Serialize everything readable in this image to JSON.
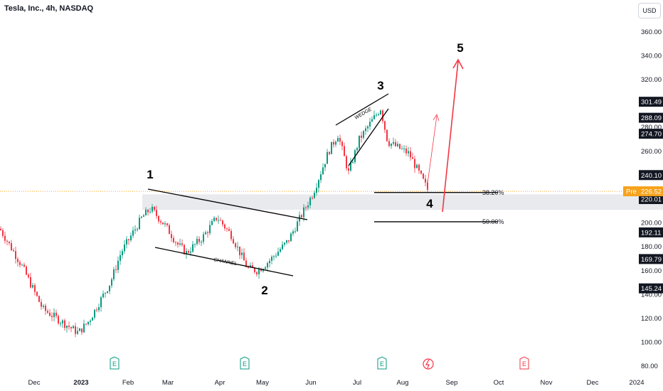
{
  "header": {
    "title": "Tesla, Inc., 4h, NASDAQ",
    "currency": "USD"
  },
  "colors": {
    "up": "#089981",
    "down": "#f23645",
    "price_line": "#f7a21b",
    "arrow": "#f23645",
    "fib_zone": "#e3e5ea",
    "label_bg": "#131722",
    "pre_bg": "#f7a21b"
  },
  "chart_data": {
    "type": "candlestick",
    "title": "Tesla, Inc., 4h, NASDAQ",
    "ylim": [
      73,
      373
    ],
    "y_ticks": [
      "80.00",
      "100.00",
      "120.00",
      "140.00",
      "160.00",
      "180.00",
      "200.00",
      "220.00",
      "240.00",
      "260.00",
      "280.00",
      "300.00",
      "320.00",
      "340.00",
      "360.00"
    ],
    "x_ticks": [
      "Dec",
      "2023",
      "Feb",
      "Mar",
      "Apr",
      "May",
      "Jun",
      "Jul",
      "Aug",
      "Sep",
      "Oct",
      "Nov",
      "Dec",
      "2024"
    ],
    "price_path": [
      {
        "t": "Dec",
        "price": 195
      },
      {
        "t": "Dec",
        "price": 180
      },
      {
        "t": "Dec",
        "price": 165
      },
      {
        "t": "2023",
        "price": 128
      },
      {
        "t": "2023",
        "price": 108
      },
      {
        "t": "2023",
        "price": 118
      },
      {
        "t": "Feb",
        "price": 150
      },
      {
        "t": "Feb",
        "price": 175
      },
      {
        "t": "Feb",
        "price": 205
      },
      {
        "t": "Feb",
        "price": 212
      },
      {
        "t": "Mar",
        "price": 198
      },
      {
        "t": "Mar",
        "price": 182
      },
      {
        "t": "Mar",
        "price": 175
      },
      {
        "t": "Apr",
        "price": 188
      },
      {
        "t": "Apr",
        "price": 205
      },
      {
        "t": "Apr",
        "price": 190
      },
      {
        "t": "May",
        "price": 162
      },
      {
        "t": "May",
        "price": 160
      },
      {
        "t": "May",
        "price": 168
      },
      {
        "t": "Jun",
        "price": 185
      },
      {
        "t": "Jun",
        "price": 225
      },
      {
        "t": "Jun",
        "price": 260
      },
      {
        "t": "Jun",
        "price": 274
      },
      {
        "t": "Jul",
        "price": 242
      },
      {
        "t": "Jul",
        "price": 270
      },
      {
        "t": "Jul",
        "price": 296
      },
      {
        "t": "Jul",
        "price": 268
      },
      {
        "t": "Aug",
        "price": 258
      },
      {
        "t": "Aug",
        "price": 228
      }
    ],
    "price_labels": [
      {
        "text": "301.49",
        "value": 301.49
      },
      {
        "text": "288.09",
        "value": 288.09
      },
      {
        "text": "274.70",
        "value": 274.7
      },
      {
        "text": "240.10",
        "value": 240.1
      },
      {
        "text": "220.01",
        "value": 220.01
      },
      {
        "text": "192.11",
        "value": 192.11
      },
      {
        "text": "169.79",
        "value": 169.79
      },
      {
        "text": "145.24",
        "value": 145.24
      }
    ],
    "current_price": {
      "tag": "Pre",
      "text": "226.52",
      "value": 226.52
    },
    "fib_levels": [
      {
        "label": "38.20%",
        "value": 225.5
      },
      {
        "label": "50.00%",
        "value": 201.0
      }
    ],
    "fib_zone": [
      211,
      224
    ],
    "annotations": {
      "waves": [
        "1",
        "2",
        "3",
        "4",
        "5"
      ],
      "channel": "CHANNEL",
      "wedge": "WEDGE"
    },
    "earnings_markers": [
      "E",
      "E",
      "E",
      "E"
    ]
  }
}
